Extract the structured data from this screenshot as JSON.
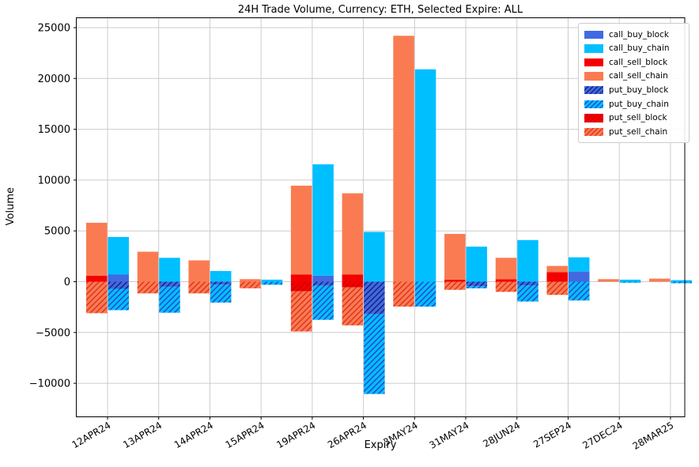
{
  "chart_data": {
    "type": "bar",
    "title": "24H Trade Volume, Currency: ETH, Selected Expire: ALL",
    "xlabel": "Expiry",
    "ylabel": "Volume",
    "grid": true,
    "legend_position": "upper right",
    "categories": [
      "12APR24",
      "13APR24",
      "14APR24",
      "15APR24",
      "19APR24",
      "26APR24",
      "3MAY24",
      "31MAY24",
      "28JUN24",
      "27SEP24",
      "27DEC24",
      "28MAR25"
    ],
    "yticks": [
      25000,
      20000,
      15000,
      10000,
      5000,
      0,
      -5000,
      -10000
    ],
    "ylim": [
      -13300,
      26000
    ],
    "bar_layout": {
      "sell_bar_stacks_positive": [
        "call_sell_block",
        "call_sell_chain"
      ],
      "sell_bar_stacks_negative": [
        "put_sell_block",
        "put_sell_chain"
      ],
      "buy_bar_stacks_positive": [
        "call_buy_block",
        "call_buy_chain"
      ],
      "buy_bar_stacks_negative": [
        "put_buy_block",
        "put_buy_chain"
      ]
    },
    "series": [
      {
        "name": "call_buy_block",
        "color": "#4169E1",
        "hatch": false,
        "values": [
          700,
          0,
          0,
          0,
          600,
          0,
          0,
          0,
          0,
          1000,
          0,
          0
        ]
      },
      {
        "name": "call_buy_chain",
        "color": "#00BFFF",
        "hatch": false,
        "values": [
          3700,
          2350,
          1050,
          200,
          10950,
          4900,
          20900,
          3450,
          4100,
          1400,
          200,
          150
        ]
      },
      {
        "name": "call_sell_block",
        "color": "#F40000",
        "hatch": false,
        "values": [
          600,
          0,
          0,
          0,
          700,
          700,
          0,
          200,
          250,
          950,
          0,
          0
        ]
      },
      {
        "name": "call_sell_chain",
        "color": "#FA7B52",
        "hatch": false,
        "values": [
          5200,
          2950,
          2100,
          250,
          8750,
          8000,
          24200,
          4500,
          2100,
          600,
          250,
          300
        ]
      },
      {
        "name": "put_buy_block",
        "color": "#4169E1",
        "hatch": true,
        "hatch_color": "#16247E",
        "values": [
          -700,
          -500,
          -300,
          0,
          -400,
          -3200,
          0,
          -450,
          -350,
          0,
          0,
          0
        ]
      },
      {
        "name": "put_buy_chain",
        "color": "#00BFFF",
        "hatch": true,
        "hatch_color": "#2749C9",
        "values": [
          -2100,
          -2550,
          -1750,
          -300,
          -3350,
          -7850,
          -2450,
          -200,
          -1600,
          -1850,
          -100,
          -150
        ]
      },
      {
        "name": "put_sell_block",
        "color": "#F40000",
        "hatch": true,
        "hatch_color": "#D00000",
        "values": [
          0,
          0,
          0,
          0,
          -950,
          -550,
          0,
          0,
          0,
          0,
          0,
          0
        ]
      },
      {
        "name": "put_sell_chain",
        "color": "#FA7B52",
        "hatch": true,
        "hatch_color": "#E03420",
        "values": [
          -3100,
          -1150,
          -1150,
          -650,
          -3950,
          -3750,
          -2450,
          -800,
          -1000,
          -1300,
          0,
          0
        ]
      }
    ]
  }
}
